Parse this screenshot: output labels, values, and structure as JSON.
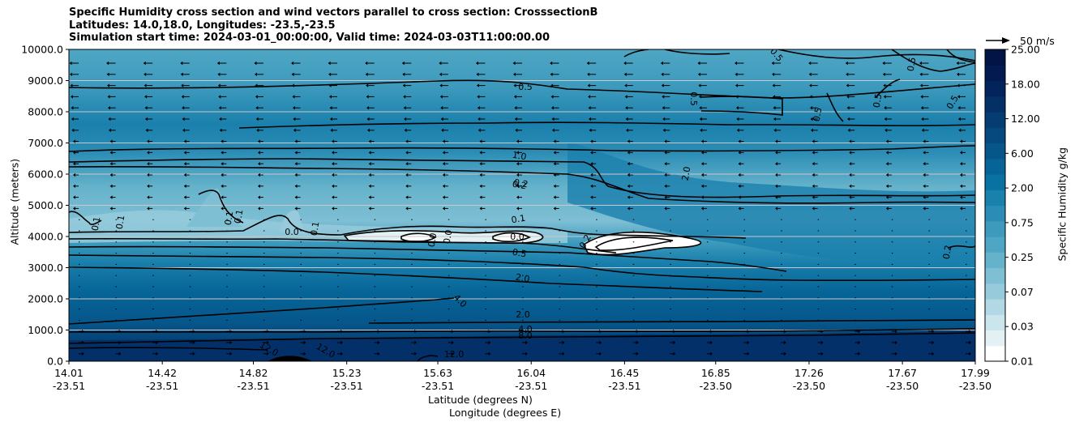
{
  "chart_data": {
    "type": "heatmap",
    "title_lines": [
      "Specific Humidity cross section and wind vectors parallel to cross section: CrosssectionB",
      "Latitudes: 14.0,18.0, Longitudes: -23.5,-23.5",
      "Simulation start time: 2024-03-01_00:00:00, Valid time: 2024-03-03T11:00:00.00"
    ],
    "xlabel_lat": "Latitude (degrees N)",
    "xlabel_lon": "Longitude (degrees E)",
    "ylabel": "Altitude (meters)",
    "ylim": [
      0,
      10000
    ],
    "xlim": [
      14.01,
      17.99
    ],
    "yticks": [
      "0.0",
      "1000.0",
      "2000.0",
      "3000.0",
      "4000.0",
      "5000.0",
      "6000.0",
      "7000.0",
      "8000.0",
      "9000.0",
      "10000.0"
    ],
    "xticks": [
      {
        "lat": "14.01",
        "lon": "-23.51"
      },
      {
        "lat": "14.42",
        "lon": "-23.51"
      },
      {
        "lat": "14.82",
        "lon": "-23.51"
      },
      {
        "lat": "15.23",
        "lon": "-23.51"
      },
      {
        "lat": "15.63",
        "lon": "-23.51"
      },
      {
        "lat": "16.04",
        "lon": "-23.51"
      },
      {
        "lat": "16.45",
        "lon": "-23.51"
      },
      {
        "lat": "16.85",
        "lon": "-23.50"
      },
      {
        "lat": "17.26",
        "lon": "-23.50"
      },
      {
        "lat": "17.67",
        "lon": "-23.50"
      },
      {
        "lat": "17.99",
        "lon": "-23.50"
      }
    ],
    "colorbar": {
      "label": "Specific Humidity g/kg",
      "levels": [
        0.01,
        0.02,
        0.03,
        0.05,
        0.07,
        0.1,
        0.25,
        0.5,
        0.75,
        1.0,
        1.5,
        2.0,
        4.0,
        6.0,
        8.0,
        12.0,
        15.0,
        18.0,
        21.0,
        25.0
      ],
      "tick_labels": [
        "0.01",
        "0.03",
        "0.07",
        "0.25",
        "0.75",
        "2.00",
        "6.00",
        "12.00",
        "18.00",
        "25.00"
      ],
      "colors": [
        "#ffffff",
        "#e4f1f4",
        "#cbe5ec",
        "#b1d8e4",
        "#97cbdc",
        "#7ebfd4",
        "#65b2cb",
        "#4fa6c4",
        "#3d9abd",
        "#2b8db5",
        "#1a80ac",
        "#0a72a3",
        "#066497",
        "#06568a",
        "#06497e",
        "#053c71",
        "#043065",
        "#03245a",
        "#021a4f",
        "#021345"
      ]
    },
    "contour_labels": [
      "0.1",
      "0.1",
      "0.1",
      "0.1",
      "0.1",
      "0.2",
      "0.5",
      "0.5",
      "0.5",
      "0.5",
      "0.5",
      "0.5",
      "0.5",
      "0.2",
      "1.0",
      "0.2",
      "2.0",
      "0.1",
      "0.0",
      "0.0",
      "0.0",
      "0.0",
      "0.5",
      "2.0",
      "4.0",
      "2.0",
      "4.0",
      "8.0",
      "12.0",
      "12.0",
      "12.0",
      "0.2"
    ],
    "quiver_key": "50 m/s",
    "grid": "horizontal"
  }
}
